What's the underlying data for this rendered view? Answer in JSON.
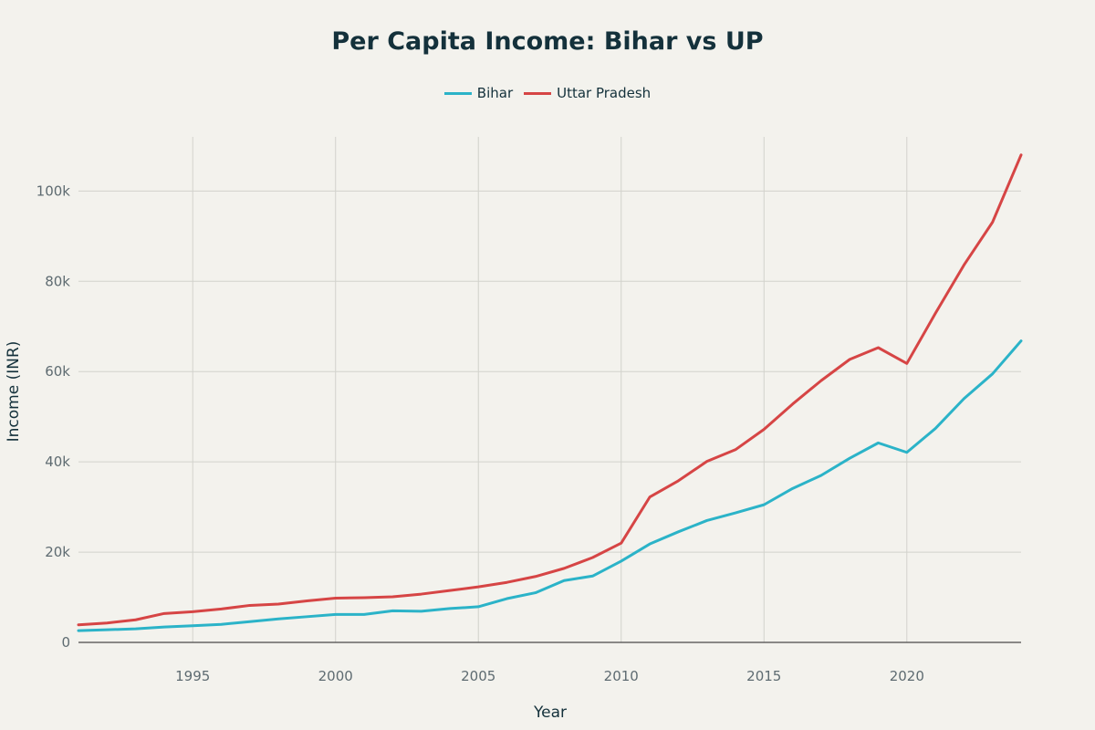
{
  "chart_data": {
    "type": "line",
    "title": "Per Capita Income: Bihar vs UP",
    "xlabel": "Year",
    "ylabel": "Income (INR)",
    "xlim": [
      1991,
      2024
    ],
    "ylim": [
      0,
      112000
    ],
    "grid": true,
    "legend_position": "top-center",
    "x_ticks": [
      1995,
      2000,
      2005,
      2010,
      2015,
      2020
    ],
    "x_tick_labels": [
      "1995",
      "2000",
      "2005",
      "2010",
      "2015",
      "2020"
    ],
    "y_ticks": [
      0,
      20000,
      40000,
      60000,
      80000,
      100000
    ],
    "y_tick_labels": [
      "0",
      "20k",
      "40k",
      "60k",
      "80k",
      "100k"
    ],
    "x": [
      1991,
      1992,
      1993,
      1994,
      1995,
      1996,
      1997,
      1998,
      1999,
      2000,
      2001,
      2002,
      2003,
      2004,
      2005,
      2006,
      2007,
      2008,
      2009,
      2010,
      2011,
      2012,
      2013,
      2014,
      2015,
      2016,
      2017,
      2018,
      2019,
      2020,
      2021,
      2022,
      2023,
      2024
    ],
    "series": [
      {
        "name": "Bihar",
        "color": "#2bb3c8",
        "values": [
          2600,
          2800,
          3000,
          3400,
          3700,
          4000,
          4600,
          5200,
          5700,
          6200,
          6200,
          7000,
          6900,
          7500,
          7900,
          9700,
          11000,
          13700,
          14700,
          18000,
          21800,
          24500,
          27000,
          28700,
          30500,
          34100,
          37000,
          40800,
          44200,
          42100,
          47400,
          54000,
          59500,
          66800
        ]
      },
      {
        "name": "Uttar Pradesh",
        "color": "#d64545",
        "values": [
          3900,
          4300,
          5000,
          6400,
          6800,
          7400,
          8200,
          8500,
          9200,
          9800,
          9900,
          10100,
          10700,
          11500,
          12300,
          13300,
          14600,
          16400,
          18800,
          22000,
          32200,
          35800,
          40100,
          42700,
          47200,
          52800,
          58000,
          62700,
          65300,
          61800,
          72900,
          83600,
          93100,
          108000
        ]
      }
    ]
  }
}
